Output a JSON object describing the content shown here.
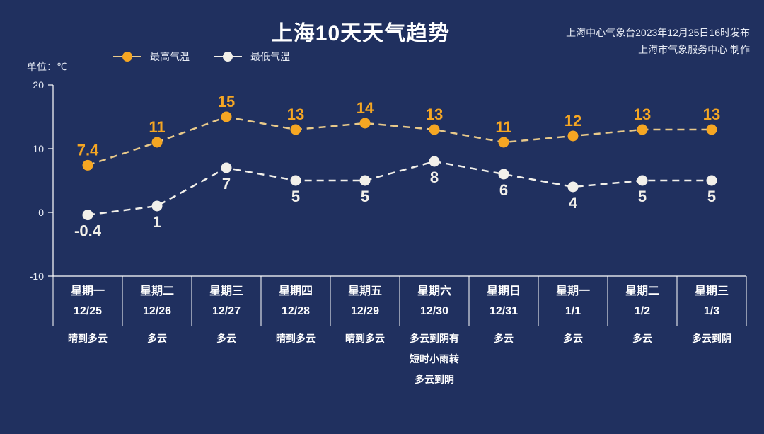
{
  "header": {
    "title": "上海10天天气趋势",
    "source_line1": "上海中心气象台2023年12月25日16时发布",
    "source_line2": "上海市气象服务中心 制作"
  },
  "legend": {
    "high_label": "最高气温",
    "low_label": "最低气温"
  },
  "unit_label": "单位：℃",
  "colors": {
    "background": "#20305f",
    "high": "#f5a623",
    "high_line": "#e8c98a",
    "low": "#f2f0ea",
    "axis": "#ffffff"
  },
  "chart_data": {
    "type": "line",
    "title": "上海10天天气趋势",
    "xlabel": "",
    "ylabel": "单位：℃",
    "ylim": [
      -10,
      20
    ],
    "yticks": [
      -10,
      0,
      10,
      20
    ],
    "grid": false,
    "legend_position": "top",
    "categories": [
      "12/25",
      "12/26",
      "12/27",
      "12/28",
      "12/29",
      "12/30",
      "12/31",
      "1/1",
      "1/2",
      "1/3"
    ],
    "weekdays": [
      "星期一",
      "星期二",
      "星期三",
      "星期四",
      "星期五",
      "星期六",
      "星期日",
      "星期一",
      "星期二",
      "星期三"
    ],
    "weather": [
      "晴到多云",
      "多云",
      "多云",
      "晴到多云",
      "晴到多云",
      "多云到阴有短时小雨转多云到阴",
      "多云",
      "多云",
      "多云",
      "多云到阴"
    ],
    "series": [
      {
        "name": "最高气温",
        "values": [
          7.4,
          11,
          15,
          13,
          14,
          13,
          11,
          12,
          13,
          13
        ]
      },
      {
        "name": "最低气温",
        "values": [
          -0.4,
          1,
          7,
          5,
          5,
          8,
          6,
          4,
          5,
          5
        ]
      }
    ]
  },
  "days": [
    {
      "weekday": "星期一",
      "date": "12/25",
      "weather": [
        "晴到多云"
      ]
    },
    {
      "weekday": "星期二",
      "date": "12/26",
      "weather": [
        "多云"
      ]
    },
    {
      "weekday": "星期三",
      "date": "12/27",
      "weather": [
        "多云"
      ]
    },
    {
      "weekday": "星期四",
      "date": "12/28",
      "weather": [
        "晴到多云"
      ]
    },
    {
      "weekday": "星期五",
      "date": "12/29",
      "weather": [
        "晴到多云"
      ]
    },
    {
      "weekday": "星期六",
      "date": "12/30",
      "weather": [
        "多云到阴有",
        "短时小雨转",
        "多云到阴"
      ]
    },
    {
      "weekday": "星期日",
      "date": "12/31",
      "weather": [
        "多云"
      ]
    },
    {
      "weekday": "星期一",
      "date": "1/1",
      "weather": [
        "多云"
      ]
    },
    {
      "weekday": "星期二",
      "date": "1/2",
      "weather": [
        "多云"
      ]
    },
    {
      "weekday": "星期三",
      "date": "1/3",
      "weather": [
        "多云到阴"
      ]
    }
  ]
}
